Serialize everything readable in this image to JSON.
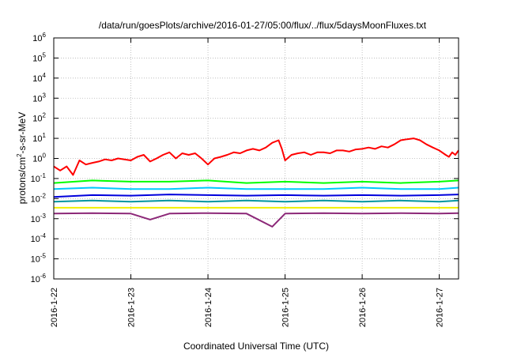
{
  "chart_data": {
    "type": "line",
    "title": "/data/run/goesPlots/archive/2016-01-27/05:00/flux/../flux/5daysMoonFluxes.txt",
    "xlabel": "Coordinated Universal Time (UTC)",
    "ylabel": {
      "prefix": "protons/cm",
      "superscript": "2",
      "suffix": "-s-sr-MeV"
    },
    "x_range": [
      "2016-01-22T00:00",
      "2016-01-27T06:00"
    ],
    "x_ticks": [
      "2016-1-22",
      "2016-1-23",
      "2016-1-24",
      "2016-1-25",
      "2016-1-26",
      "2016-1-27"
    ],
    "y_scale": "log",
    "y_range": [
      1e-06,
      1000000
    ],
    "y_ticks": [
      {
        "base": "10",
        "exp": "-6"
      },
      {
        "base": "10",
        "exp": "-5"
      },
      {
        "base": "10",
        "exp": "-4"
      },
      {
        "base": "10",
        "exp": "-3"
      },
      {
        "base": "10",
        "exp": "-2"
      },
      {
        "base": "10",
        "exp": "-1"
      },
      {
        "base": "10",
        "exp": "0"
      },
      {
        "base": "10",
        "exp": "1"
      },
      {
        "base": "10",
        "exp": "2"
      },
      {
        "base": "10",
        "exp": "3"
      },
      {
        "base": "10",
        "exp": "4"
      },
      {
        "base": "10",
        "exp": "5"
      },
      {
        "base": "10",
        "exp": "6"
      }
    ],
    "grid": true,
    "legend": "none",
    "series": [
      {
        "color": "#ff0000",
        "points": [
          [
            "2016-01-22T00:00",
            0.4
          ],
          [
            "2016-01-22T02:00",
            0.25
          ],
          [
            "2016-01-22T04:00",
            0.4
          ],
          [
            "2016-01-22T06:00",
            0.15
          ],
          [
            "2016-01-22T08:00",
            0.8
          ],
          [
            "2016-01-22T10:00",
            0.5
          ],
          [
            "2016-01-22T12:00",
            0.6
          ],
          [
            "2016-01-22T14:00",
            0.7
          ],
          [
            "2016-01-22T16:00",
            0.9
          ],
          [
            "2016-01-22T18:00",
            0.8
          ],
          [
            "2016-01-22T20:00",
            1.0
          ],
          [
            "2016-01-22T22:00",
            0.9
          ],
          [
            "2016-01-23T00:00",
            0.8
          ],
          [
            "2016-01-23T02:00",
            1.2
          ],
          [
            "2016-01-23T04:00",
            1.5
          ],
          [
            "2016-01-23T06:00",
            0.7
          ],
          [
            "2016-01-23T08:00",
            1.0
          ],
          [
            "2016-01-23T10:00",
            1.5
          ],
          [
            "2016-01-23T12:00",
            2.0
          ],
          [
            "2016-01-23T14:00",
            1.0
          ],
          [
            "2016-01-23T16:00",
            1.8
          ],
          [
            "2016-01-23T18:00",
            1.5
          ],
          [
            "2016-01-23T20:00",
            1.8
          ],
          [
            "2016-01-23T22:00",
            1.0
          ],
          [
            "2016-01-24T00:00",
            0.5
          ],
          [
            "2016-01-24T02:00",
            1.0
          ],
          [
            "2016-01-24T04:00",
            1.2
          ],
          [
            "2016-01-24T06:00",
            1.5
          ],
          [
            "2016-01-24T08:00",
            2.0
          ],
          [
            "2016-01-24T10:00",
            1.8
          ],
          [
            "2016-01-24T12:00",
            2.5
          ],
          [
            "2016-01-24T14:00",
            3.0
          ],
          [
            "2016-01-24T16:00",
            2.5
          ],
          [
            "2016-01-24T18:00",
            3.5
          ],
          [
            "2016-01-24T20:00",
            6.0
          ],
          [
            "2016-01-24T22:00",
            8.0
          ],
          [
            "2016-01-24T23:00",
            3.0
          ],
          [
            "2016-01-25T00:00",
            0.8
          ],
          [
            "2016-01-25T02:00",
            1.5
          ],
          [
            "2016-01-25T04:00",
            1.8
          ],
          [
            "2016-01-25T06:00",
            2.0
          ],
          [
            "2016-01-25T08:00",
            1.5
          ],
          [
            "2016-01-25T10:00",
            2.0
          ],
          [
            "2016-01-25T12:00",
            2.0
          ],
          [
            "2016-01-25T14:00",
            1.8
          ],
          [
            "2016-01-25T16:00",
            2.5
          ],
          [
            "2016-01-25T18:00",
            2.5
          ],
          [
            "2016-01-25T20:00",
            2.2
          ],
          [
            "2016-01-25T22:00",
            2.8
          ],
          [
            "2016-01-26T00:00",
            3.0
          ],
          [
            "2016-01-26T02:00",
            3.5
          ],
          [
            "2016-01-26T04:00",
            3.0
          ],
          [
            "2016-01-26T06:00",
            4.0
          ],
          [
            "2016-01-26T08:00",
            3.5
          ],
          [
            "2016-01-26T10:00",
            5.0
          ],
          [
            "2016-01-26T12:00",
            8.0
          ],
          [
            "2016-01-26T14:00",
            9.0
          ],
          [
            "2016-01-26T16:00",
            10.0
          ],
          [
            "2016-01-26T18:00",
            8.0
          ],
          [
            "2016-01-26T20:00",
            5.0
          ],
          [
            "2016-01-26T22:00",
            3.5
          ],
          [
            "2016-01-27T00:00",
            2.5
          ],
          [
            "2016-01-27T02:00",
            1.5
          ],
          [
            "2016-01-27T03:00",
            1.2
          ],
          [
            "2016-01-27T04:00",
            2.0
          ],
          [
            "2016-01-27T05:00",
            1.5
          ],
          [
            "2016-01-27T06:00",
            2.5
          ]
        ]
      },
      {
        "color": "#00ff00",
        "points": [
          [
            "2016-01-22T00:00",
            0.06
          ],
          [
            "2016-01-22T12:00",
            0.08
          ],
          [
            "2016-01-23T00:00",
            0.07
          ],
          [
            "2016-01-23T12:00",
            0.07
          ],
          [
            "2016-01-24T00:00",
            0.08
          ],
          [
            "2016-01-24T12:00",
            0.06
          ],
          [
            "2016-01-25T00:00",
            0.07
          ],
          [
            "2016-01-25T12:00",
            0.06
          ],
          [
            "2016-01-26T00:00",
            0.07
          ],
          [
            "2016-01-26T12:00",
            0.06
          ],
          [
            "2016-01-27T00:00",
            0.07
          ],
          [
            "2016-01-27T06:00",
            0.08
          ]
        ]
      },
      {
        "color": "#00c8ff",
        "points": [
          [
            "2016-01-22T00:00",
            0.03
          ],
          [
            "2016-01-22T12:00",
            0.035
          ],
          [
            "2016-01-23T00:00",
            0.03
          ],
          [
            "2016-01-23T12:00",
            0.03
          ],
          [
            "2016-01-24T00:00",
            0.035
          ],
          [
            "2016-01-24T12:00",
            0.03
          ],
          [
            "2016-01-25T00:00",
            0.03
          ],
          [
            "2016-01-25T12:00",
            0.03
          ],
          [
            "2016-01-26T00:00",
            0.035
          ],
          [
            "2016-01-26T12:00",
            0.03
          ],
          [
            "2016-01-27T00:00",
            0.03
          ],
          [
            "2016-01-27T06:00",
            0.035
          ]
        ]
      },
      {
        "color": "#0000dc",
        "points": [
          [
            "2016-01-22T00:00",
            0.012
          ],
          [
            "2016-01-22T12:00",
            0.015
          ],
          [
            "2016-01-23T00:00",
            0.014
          ],
          [
            "2016-01-23T12:00",
            0.016
          ],
          [
            "2016-01-24T00:00",
            0.015
          ],
          [
            "2016-01-24T12:00",
            0.014
          ],
          [
            "2016-01-25T00:00",
            0.015
          ],
          [
            "2016-01-25T12:00",
            0.014
          ],
          [
            "2016-01-26T00:00",
            0.015
          ],
          [
            "2016-01-26T12:00",
            0.014
          ],
          [
            "2016-01-27T00:00",
            0.015
          ],
          [
            "2016-01-27T06:00",
            0.016
          ]
        ]
      },
      {
        "color": "#0096a0",
        "points": [
          [
            "2016-01-22T00:00",
            0.007
          ],
          [
            "2016-01-22T12:00",
            0.008
          ],
          [
            "2016-01-23T00:00",
            0.007
          ],
          [
            "2016-01-23T12:00",
            0.008
          ],
          [
            "2016-01-24T00:00",
            0.007
          ],
          [
            "2016-01-24T12:00",
            0.008
          ],
          [
            "2016-01-25T00:00",
            0.007
          ],
          [
            "2016-01-25T12:00",
            0.008
          ],
          [
            "2016-01-26T00:00",
            0.007
          ],
          [
            "2016-01-26T12:00",
            0.008
          ],
          [
            "2016-01-27T00:00",
            0.007
          ],
          [
            "2016-01-27T06:00",
            0.008
          ]
        ]
      },
      {
        "color": "#f0f000",
        "points": [
          [
            "2016-01-22T00:00",
            0.0035
          ],
          [
            "2016-01-22T12:00",
            0.0035
          ],
          [
            "2016-01-23T00:00",
            0.0035
          ],
          [
            "2016-01-23T12:00",
            0.0035
          ],
          [
            "2016-01-24T00:00",
            0.0035
          ],
          [
            "2016-01-24T12:00",
            0.0035
          ],
          [
            "2016-01-25T00:00",
            0.0035
          ],
          [
            "2016-01-25T12:00",
            0.0035
          ],
          [
            "2016-01-26T00:00",
            0.0035
          ],
          [
            "2016-01-26T12:00",
            0.0035
          ],
          [
            "2016-01-27T00:00",
            0.0035
          ],
          [
            "2016-01-27T06:00",
            0.0035
          ]
        ]
      },
      {
        "color": "#8c2878",
        "points": [
          [
            "2016-01-22T00:00",
            0.0018
          ],
          [
            "2016-01-22T12:00",
            0.0019
          ],
          [
            "2016-01-23T00:00",
            0.0018
          ],
          [
            "2016-01-23T06:00",
            0.0009
          ],
          [
            "2016-01-23T12:00",
            0.0018
          ],
          [
            "2016-01-24T00:00",
            0.0019
          ],
          [
            "2016-01-24T12:00",
            0.0018
          ],
          [
            "2016-01-24T20:00",
            0.0004
          ],
          [
            "2016-01-25T00:00",
            0.0018
          ],
          [
            "2016-01-25T12:00",
            0.0019
          ],
          [
            "2016-01-26T00:00",
            0.0018
          ],
          [
            "2016-01-26T12:00",
            0.0019
          ],
          [
            "2016-01-27T00:00",
            0.0018
          ],
          [
            "2016-01-27T06:00",
            0.0019
          ]
        ]
      }
    ]
  }
}
